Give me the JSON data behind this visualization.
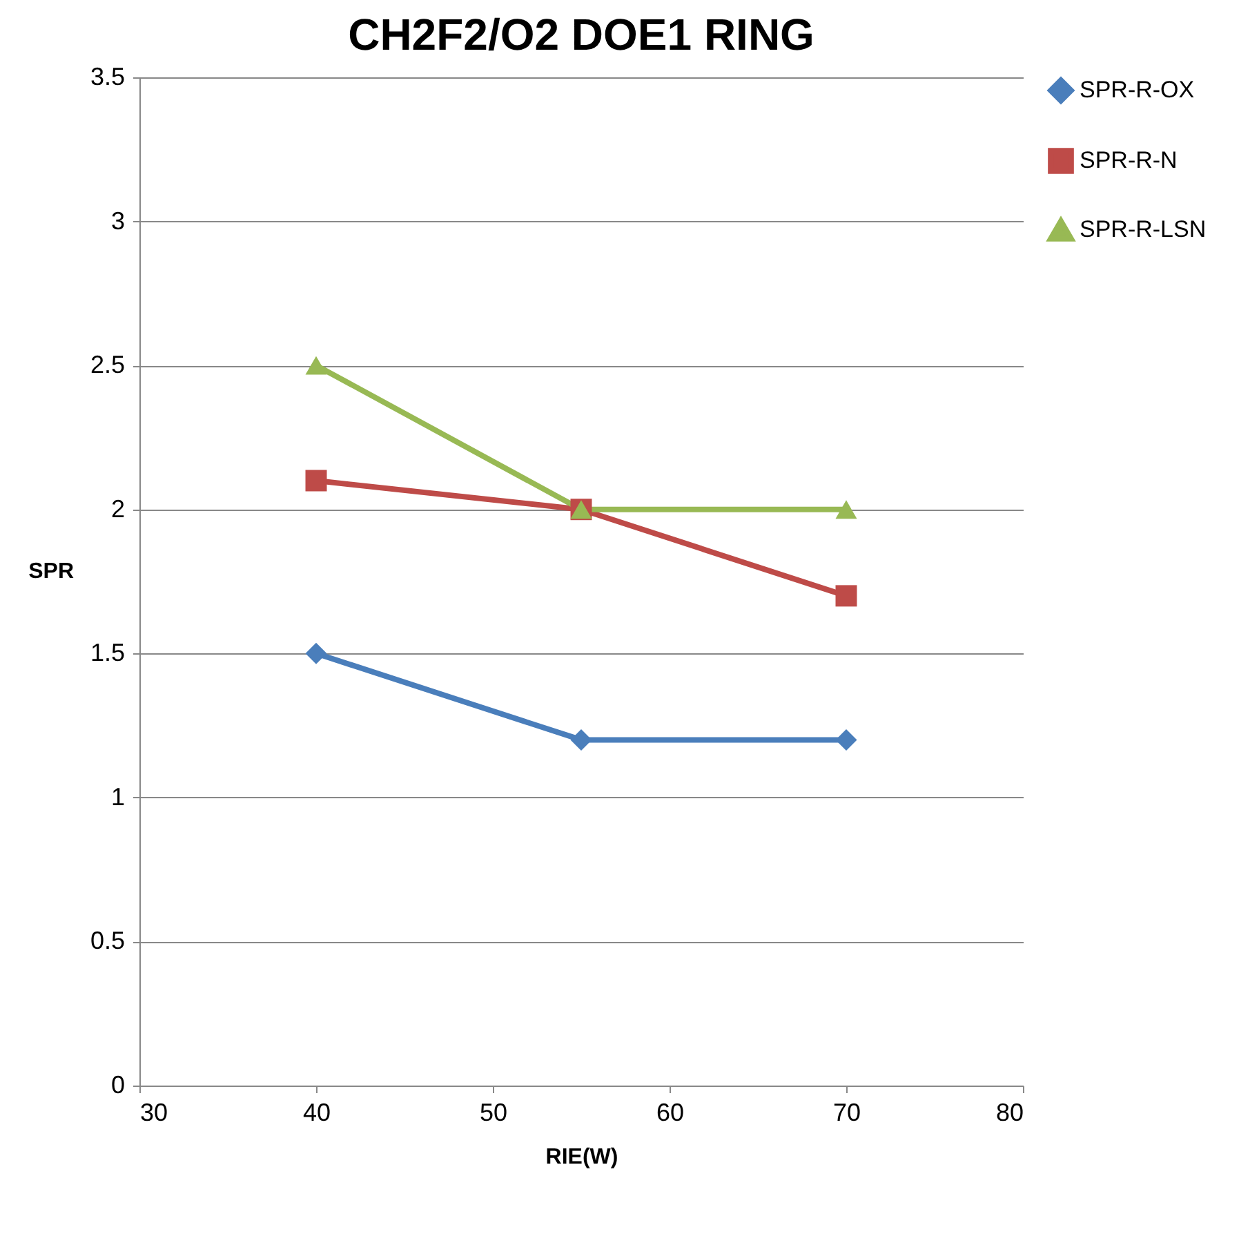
{
  "chart_data": {
    "type": "line",
    "title": "CH2F2/O2 DOE1 RING",
    "xlabel": "RIE(W)",
    "ylabel": "SPR",
    "x": [
      40,
      55,
      70
    ],
    "series": [
      {
        "name": "SPR-R-OX",
        "color": "#4a7ebb",
        "marker": "diamond",
        "values": [
          1.5,
          1.2,
          1.2
        ]
      },
      {
        "name": "SPR-R-N",
        "color": "#be4b48",
        "marker": "square",
        "values": [
          2.1,
          2.0,
          1.7
        ]
      },
      {
        "name": "SPR-R-LSN",
        "color": "#98b954",
        "marker": "triangle",
        "values": [
          2.5,
          2.0,
          2.0
        ]
      }
    ],
    "xlim": [
      30,
      80
    ],
    "xticks": [
      30,
      40,
      50,
      60,
      70,
      80
    ],
    "ylim": [
      0,
      3.5
    ],
    "yticks": [
      0,
      0.5,
      1,
      1.5,
      2,
      2.5,
      3,
      3.5
    ],
    "grid": "y",
    "legend": "right",
    "line_style": "solid"
  }
}
